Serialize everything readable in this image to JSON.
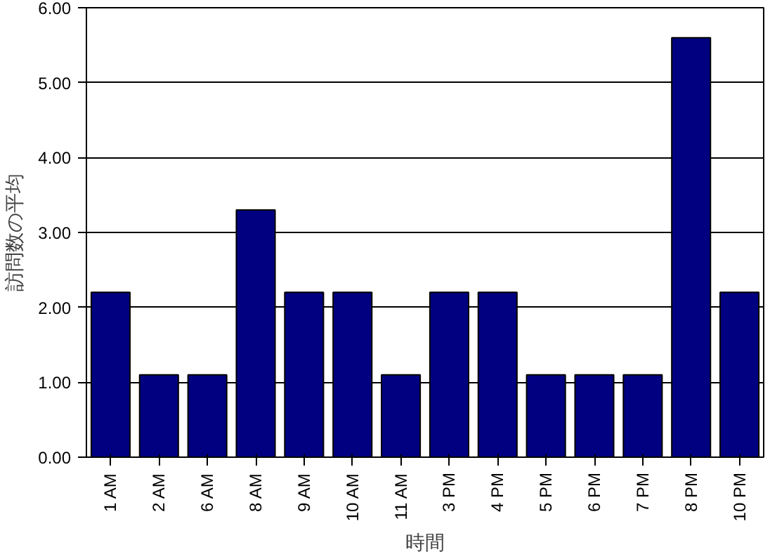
{
  "chart_data": {
    "type": "bar",
    "xlabel": "時間",
    "ylabel": "訪問数の平均",
    "categories": [
      "1 AM",
      "2 AM",
      "6 AM",
      "8 AM",
      "9 AM",
      "10 AM",
      "11 AM",
      "3 PM",
      "4 PM",
      "5 PM",
      "6 PM",
      "7 PM",
      "8 PM",
      "10 PM"
    ],
    "values": [
      2.2,
      1.1,
      1.1,
      3.3,
      2.2,
      2.2,
      1.1,
      2.2,
      2.2,
      1.1,
      1.1,
      1.1,
      5.6,
      2.2
    ],
    "color": "#000080",
    "ylim": [
      0,
      6
    ],
    "yticks": [
      {
        "value": 0,
        "label": "0.00"
      },
      {
        "value": 1,
        "label": "1.00"
      },
      {
        "value": 2,
        "label": "2.00"
      },
      {
        "value": 3,
        "label": "3.00"
      },
      {
        "value": 4,
        "label": "4.00"
      },
      {
        "value": 5,
        "label": "5.00"
      },
      {
        "value": 6,
        "label": "6.00"
      }
    ],
    "grid": "y"
  }
}
